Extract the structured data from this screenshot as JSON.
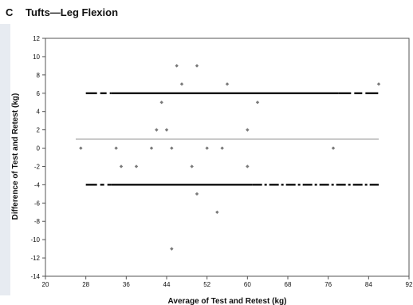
{
  "panel": {
    "letter": "C",
    "title": "Tufts—Leg Flexion"
  },
  "chart_data": {
    "type": "scatter",
    "title": "Tufts—Leg Flexion",
    "xlabel": "Average of Test and Retest (kg)",
    "ylabel": "Difference of Test and Retest (kg)",
    "xlim": [
      20,
      92
    ],
    "ylim": [
      -14,
      12
    ],
    "xticks": [
      20,
      28,
      36,
      44,
      52,
      60,
      68,
      76,
      84,
      92
    ],
    "xtick_labels": [
      "20",
      "28",
      "36",
      "44",
      "52",
      "60",
      "68",
      "76",
      "84",
      "92"
    ],
    "yticks": [
      12,
      10,
      8,
      6,
      4,
      2,
      0,
      -2,
      -4,
      -6,
      -8,
      -10,
      -12,
      -14
    ],
    "grid": false,
    "legend": "none",
    "marker_color": "#7a7a7a",
    "points": [
      {
        "x": 27,
        "y": 0
      },
      {
        "x": 34,
        "y": 0
      },
      {
        "x": 35,
        "y": -2
      },
      {
        "x": 38,
        "y": -2
      },
      {
        "x": 41,
        "y": 0
      },
      {
        "x": 42,
        "y": 2
      },
      {
        "x": 43,
        "y": 5
      },
      {
        "x": 44,
        "y": 2
      },
      {
        "x": 45,
        "y": 0
      },
      {
        "x": 45,
        "y": -11
      },
      {
        "x": 46,
        "y": 9
      },
      {
        "x": 47,
        "y": 7
      },
      {
        "x": 49,
        "y": -2
      },
      {
        "x": 50,
        "y": 9
      },
      {
        "x": 50,
        "y": -5
      },
      {
        "x": 52,
        "y": 0
      },
      {
        "x": 54,
        "y": -7
      },
      {
        "x": 55,
        "y": 0
      },
      {
        "x": 56,
        "y": 7
      },
      {
        "x": 60,
        "y": 2
      },
      {
        "x": 60,
        "y": -2
      },
      {
        "x": 62,
        "y": 5
      },
      {
        "x": 77,
        "y": 0
      },
      {
        "x": 86,
        "y": 7
      }
    ],
    "reference_lines": [
      {
        "name": "upper-limit",
        "y": 6,
        "x_range": [
          28,
          86
        ],
        "style": "dash-solid-dash",
        "color": "#000000"
      },
      {
        "name": "mean-difference",
        "y": 1,
        "x_range": [
          26,
          86
        ],
        "style": "thin-solid",
        "color": "#999999"
      },
      {
        "name": "lower-limit",
        "y": -4,
        "x_range": [
          28,
          86
        ],
        "style": "dash-solid-dashdot",
        "color": "#000000"
      }
    ]
  }
}
